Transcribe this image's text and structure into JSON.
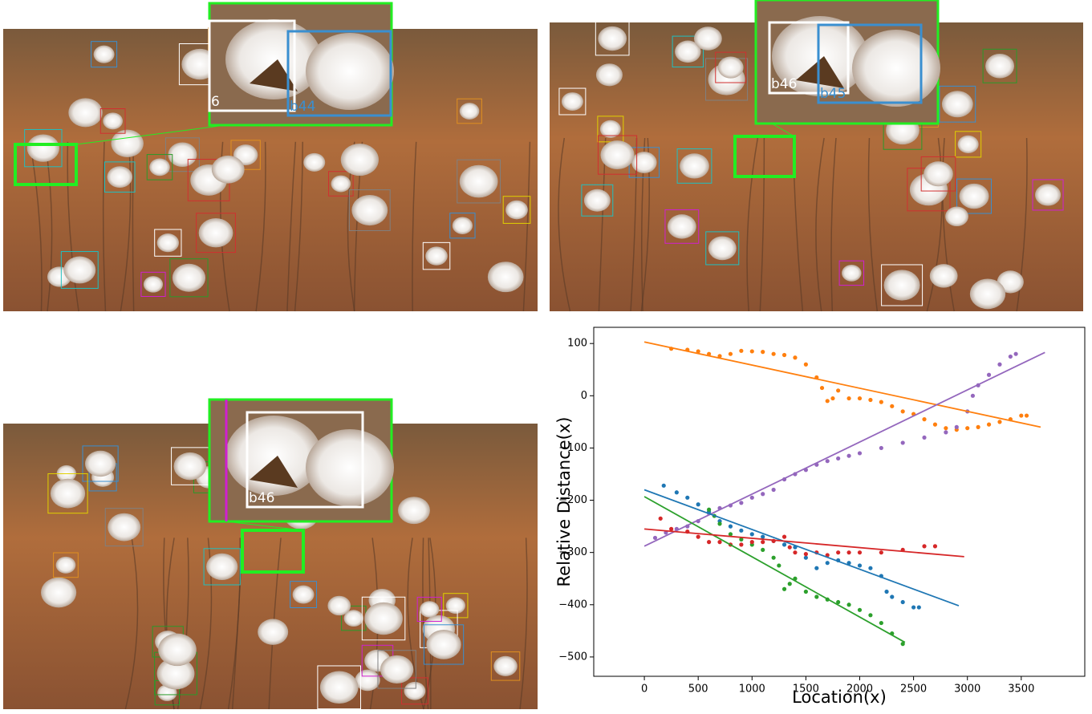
{
  "images": [
    {
      "inset_labels": [
        "6",
        "b44"
      ]
    },
    {
      "inset_labels": [
        "b46",
        "b45"
      ]
    },
    {
      "inset_labels": [
        "b46"
      ]
    }
  ],
  "chart_data": {
    "type": "scatter",
    "xlabel": "Location(x)",
    "ylabel": "Relative Distance(x)",
    "xlim": [
      -470,
      4090
    ],
    "ylim": [
      -537,
      131
    ],
    "xticks": [
      0,
      500,
      1000,
      1500,
      2000,
      2500,
      3000,
      3500
    ],
    "yticks": [
      {
        "value": 100,
        "label": "100"
      },
      {
        "value": 0,
        "label": "0"
      },
      {
        "value": -100,
        "label": "−100"
      },
      {
        "value": -200,
        "label": "−200"
      },
      {
        "value": -300,
        "label": "−300"
      },
      {
        "value": -400,
        "label": "−400"
      },
      {
        "value": -500,
        "label": "−500"
      }
    ],
    "series": [
      {
        "color": "#ff7f0e",
        "x": [
          250,
          400,
          500,
          600,
          700,
          800,
          900,
          1000,
          1100,
          1200,
          1300,
          1400,
          1500,
          1600,
          1650,
          1700,
          1750,
          1800,
          1900,
          2000,
          2100,
          2200,
          2300,
          2400,
          2500,
          2600,
          2700,
          2800,
          2900,
          3000,
          3100,
          3200,
          3300,
          3400,
          3500,
          3550
        ],
        "values": [
          90,
          88,
          85,
          80,
          76,
          80,
          86,
          85,
          84,
          80,
          78,
          73,
          60,
          35,
          15,
          -10,
          -5,
          10,
          -5,
          -5,
          -8,
          -12,
          -20,
          -30,
          -35,
          -45,
          -55,
          -62,
          -65,
          -62,
          -60,
          -55,
          -50,
          -45,
          -38,
          -38
        ]
      },
      {
        "color": "#9467bd",
        "x": [
          100,
          200,
          300,
          400,
          500,
          600,
          700,
          800,
          900,
          1000,
          1100,
          1200,
          1300,
          1400,
          1500,
          1600,
          1700,
          1800,
          1900,
          2000,
          2200,
          2400,
          2600,
          2800,
          2900,
          3000,
          3050,
          3100,
          3200,
          3300,
          3400,
          3450
        ],
        "values": [
          -272,
          -262,
          -255,
          -250,
          -240,
          -225,
          -215,
          -210,
          -205,
          -195,
          -188,
          -180,
          -160,
          -150,
          -142,
          -132,
          -125,
          -120,
          -115,
          -110,
          -100,
          -90,
          -80,
          -70,
          -60,
          -30,
          0,
          20,
          40,
          60,
          75,
          80
        ]
      },
      {
        "color": "#1f77b4",
        "x": [
          180,
          300,
          400,
          500,
          600,
          700,
          800,
          900,
          1000,
          1100,
          1200,
          1300,
          1400,
          1500,
          1600,
          1700,
          1800,
          1900,
          2000,
          2100,
          2200,
          2250,
          2300,
          2400,
          2500,
          2550
        ],
        "values": [
          -172,
          -185,
          -195,
          -208,
          -222,
          -240,
          -250,
          -258,
          -265,
          -270,
          -278,
          -285,
          -290,
          -310,
          -330,
          -320,
          -315,
          -320,
          -325,
          -330,
          -345,
          -375,
          -385,
          -395,
          -405,
          -405
        ]
      },
      {
        "color": "#2ca02c",
        "x": [
          600,
          650,
          700,
          800,
          900,
          1000,
          1100,
          1200,
          1250,
          1300,
          1350,
          1400,
          1500,
          1600,
          1700,
          1800,
          1900,
          2000,
          2100,
          2200,
          2300,
          2400
        ],
        "values": [
          -218,
          -230,
          -245,
          -265,
          -275,
          -285,
          -295,
          -310,
          -325,
          -370,
          -360,
          -350,
          -375,
          -385,
          -390,
          -395,
          -400,
          -410,
          -420,
          -435,
          -455,
          -475
        ]
      },
      {
        "color": "#d62728",
        "x": [
          150,
          250,
          400,
          500,
          600,
          700,
          800,
          900,
          1000,
          1100,
          1200,
          1300,
          1350,
          1400,
          1500,
          1600,
          1700,
          1800,
          1900,
          2000,
          2200,
          2400,
          2600,
          2700
        ],
        "values": [
          -235,
          -255,
          -260,
          -270,
          -280,
          -280,
          -285,
          -285,
          -280,
          -280,
          -278,
          -270,
          -290,
          -300,
          -303,
          -300,
          -305,
          -300,
          -300,
          -300,
          -300,
          -295,
          -288,
          -288
        ]
      }
    ],
    "fits": [
      {
        "color": "#ff7f0e",
        "x": [
          0,
          3680
        ],
        "values": [
          103,
          -60
        ]
      },
      {
        "color": "#9467bd",
        "x": [
          0,
          3720
        ],
        "values": [
          -288,
          83
        ]
      },
      {
        "color": "#1f77b4",
        "x": [
          0,
          2920
        ],
        "values": [
          -180,
          -402
        ]
      },
      {
        "color": "#2ca02c",
        "x": [
          0,
          2420
        ],
        "values": [
          -193,
          -472
        ]
      },
      {
        "color": "#d62728",
        "x": [
          0,
          2970
        ],
        "values": [
          -255,
          -308
        ]
      }
    ]
  }
}
